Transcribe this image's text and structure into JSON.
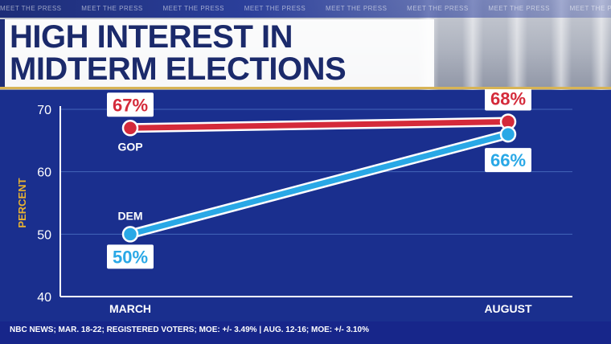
{
  "header": {
    "ticker_text": "MEET THE PRESS",
    "title_line1": "HIGH INTEREST IN",
    "title_line2": "MIDTERM ELECTIONS"
  },
  "footer": {
    "source": "NBC NEWS; MAR. 18-22; REGISTERED VOTERS; MOE: +/- 3.49%  |  AUG. 12-16; MOE: +/- 3.10%"
  },
  "colors": {
    "background": "#1a2f8e",
    "gop": "#d42a3a",
    "dem": "#29a8e6",
    "axis_title": "#e8b230"
  },
  "chart_data": {
    "type": "line",
    "title": "HIGH INTEREST IN MIDTERM ELECTIONS",
    "ylabel": "PERCENT",
    "xlabel": "",
    "categories": [
      "MARCH",
      "AUGUST"
    ],
    "ylim": [
      40,
      70
    ],
    "yticks": [
      40,
      50,
      60,
      70
    ],
    "grid": true,
    "series": [
      {
        "name": "GOP",
        "values": [
          67,
          68
        ],
        "labels": [
          "67%",
          "68%"
        ],
        "color": "#d42a3a"
      },
      {
        "name": "DEM",
        "values": [
          50,
          66
        ],
        "labels": [
          "50%",
          "66%"
        ],
        "color": "#29a8e6"
      }
    ]
  }
}
